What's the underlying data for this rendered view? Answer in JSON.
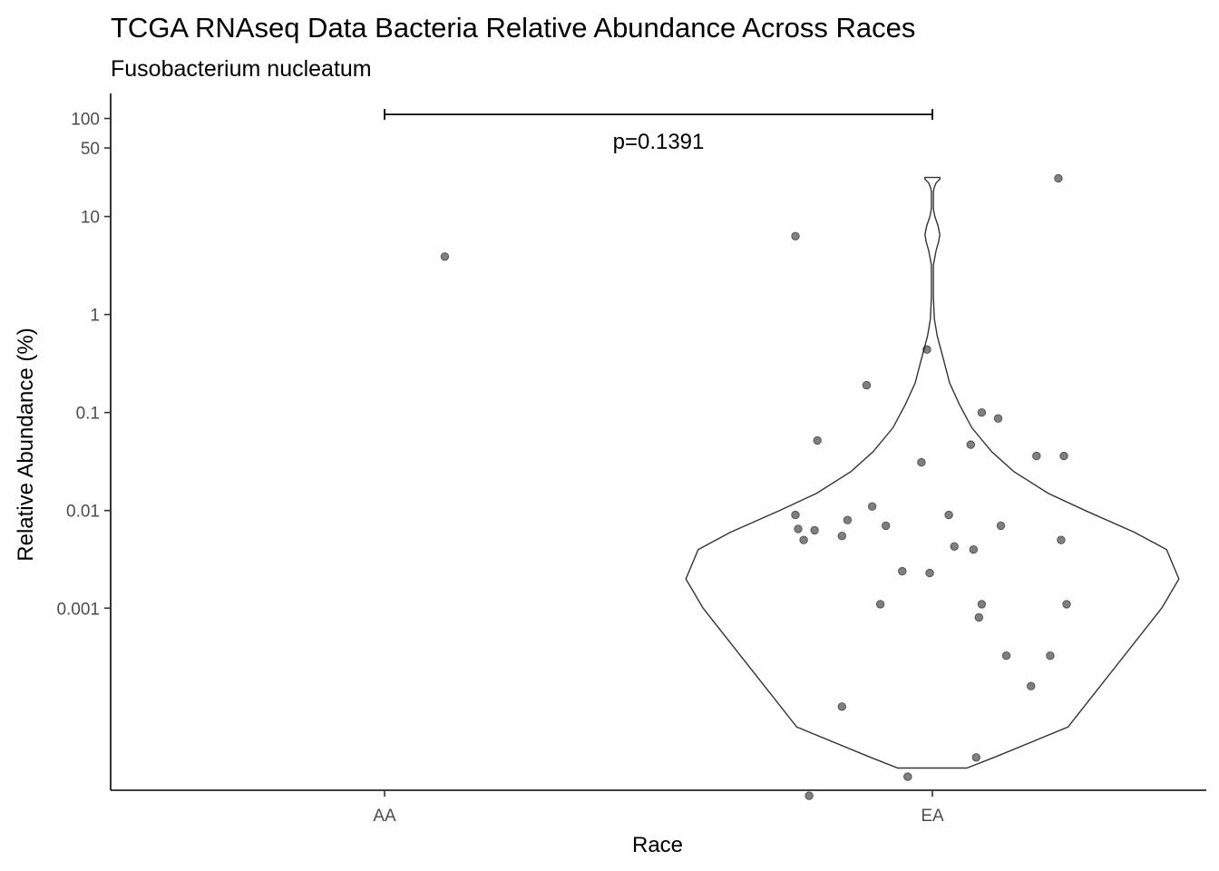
{
  "chart_data": {
    "type": "violin",
    "title": "TCGA RNAseq Data Bacteria Relative Abundance Across Races",
    "subtitle": "Fusobacterium nucleatum",
    "xlabel": "Race",
    "ylabel": "Relative Abundance (%)",
    "y_scale": "pseudo-log",
    "categories": [
      "AA",
      "EA"
    ],
    "y_ticks": [
      {
        "value": 0.001,
        "label": "0.001"
      },
      {
        "value": 0.01,
        "label": "0.01"
      },
      {
        "value": 0.1,
        "label": "0.1"
      },
      {
        "value": 1,
        "label": "1"
      },
      {
        "value": 10,
        "label": "10"
      },
      {
        "value": 50,
        "label": "50"
      },
      {
        "value": 100,
        "label": "100"
      }
    ],
    "ylim": [
      -0.0007,
      180
    ],
    "comparison": {
      "groups": [
        "AA",
        "EA"
      ],
      "label": "p=0.1391",
      "y": 110
    },
    "violin": {
      "category": "EA",
      "profile": [
        [
          -0.0004,
          0.14
        ],
        [
          -0.0003,
          0.25
        ],
        [
          -0.0001,
          0.55
        ],
        [
          0.001,
          0.93
        ],
        [
          0.002,
          1.0
        ],
        [
          0.004,
          0.95
        ],
        [
          0.006,
          0.82
        ],
        [
          0.01,
          0.62
        ],
        [
          0.015,
          0.47
        ],
        [
          0.025,
          0.33
        ],
        [
          0.04,
          0.24
        ],
        [
          0.07,
          0.16
        ],
        [
          0.12,
          0.11
        ],
        [
          0.2,
          0.07
        ],
        [
          0.35,
          0.045
        ],
        [
          0.6,
          0.02
        ],
        [
          0.9,
          0.008
        ],
        [
          1.5,
          0.004
        ],
        [
          3.2,
          0.004
        ],
        [
          4.5,
          0.015
        ],
        [
          5.5,
          0.025
        ],
        [
          6.5,
          0.03
        ],
        [
          8,
          0.023
        ],
        [
          10,
          0.01
        ],
        [
          12,
          0.004
        ],
        [
          18,
          0.004
        ],
        [
          20,
          0.008
        ],
        [
          22,
          0.015
        ],
        [
          24,
          0.03
        ],
        [
          25,
          0.03
        ]
      ]
    },
    "points": [
      {
        "group": "AA",
        "jitter": 0.11,
        "y": 3.9
      },
      {
        "group": "EA",
        "jitter": 0.23,
        "y": 24.5
      },
      {
        "group": "EA",
        "jitter": -0.25,
        "y": 6.3
      },
      {
        "group": "EA",
        "jitter": -0.01,
        "y": 0.44
      },
      {
        "group": "EA",
        "jitter": -0.12,
        "y": 0.19
      },
      {
        "group": "EA",
        "jitter": 0.09,
        "y": 0.1
      },
      {
        "group": "EA",
        "jitter": 0.12,
        "y": 0.087
      },
      {
        "group": "EA",
        "jitter": -0.21,
        "y": 0.052
      },
      {
        "group": "EA",
        "jitter": 0.07,
        "y": 0.047
      },
      {
        "group": "EA",
        "jitter": 0.19,
        "y": 0.036
      },
      {
        "group": "EA",
        "jitter": 0.24,
        "y": 0.036
      },
      {
        "group": "EA",
        "jitter": -0.02,
        "y": 0.031
      },
      {
        "group": "EA",
        "jitter": -0.11,
        "y": 0.011
      },
      {
        "group": "EA",
        "jitter": 0.03,
        "y": 0.009
      },
      {
        "group": "EA",
        "jitter": -0.25,
        "y": 0.009
      },
      {
        "group": "EA",
        "jitter": -0.155,
        "y": 0.008
      },
      {
        "group": "EA",
        "jitter": -0.085,
        "y": 0.007
      },
      {
        "group": "EA",
        "jitter": 0.125,
        "y": 0.007
      },
      {
        "group": "EA",
        "jitter": -0.245,
        "y": 0.0065
      },
      {
        "group": "EA",
        "jitter": -0.215,
        "y": 0.0063
      },
      {
        "group": "EA",
        "jitter": -0.165,
        "y": 0.0055
      },
      {
        "group": "EA",
        "jitter": -0.235,
        "y": 0.005
      },
      {
        "group": "EA",
        "jitter": 0.235,
        "y": 0.005
      },
      {
        "group": "EA",
        "jitter": 0.04,
        "y": 0.0043
      },
      {
        "group": "EA",
        "jitter": 0.075,
        "y": 0.004
      },
      {
        "group": "EA",
        "jitter": -0.055,
        "y": 0.0024
      },
      {
        "group": "EA",
        "jitter": -0.005,
        "y": 0.0023
      },
      {
        "group": "EA",
        "jitter": -0.095,
        "y": 0.0011
      },
      {
        "group": "EA",
        "jitter": 0.09,
        "y": 0.0011
      },
      {
        "group": "EA",
        "jitter": 0.245,
        "y": 0.0011
      },
      {
        "group": "EA",
        "jitter": 0.085,
        "y": 0.0008
      },
      {
        "group": "EA",
        "jitter": 0.135,
        "y": 0.0003
      },
      {
        "group": "EA",
        "jitter": 0.215,
        "y": 0.0003
      },
      {
        "group": "EA",
        "jitter": 0.18,
        "y": 0.0001
      },
      {
        "group": "EA",
        "jitter": -0.165,
        "y": 0
      },
      {
        "group": "EA",
        "jitter": 0.08,
        "y": -0.0003
      },
      {
        "group": "EA",
        "jitter": -0.045,
        "y": -0.0005
      },
      {
        "group": "EA",
        "jitter": -0.225,
        "y": -0.0008
      }
    ]
  }
}
